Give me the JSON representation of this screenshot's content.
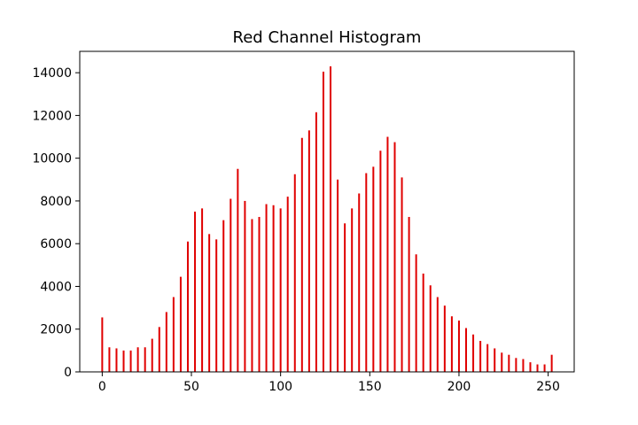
{
  "chart_data": {
    "type": "bar",
    "title": "Red Channel Histogram",
    "xlabel": "",
    "ylabel": "",
    "xlim": [
      -12.6,
      264.6
    ],
    "ylim": [
      0,
      15000
    ],
    "x_ticks": [
      0,
      50,
      100,
      150,
      200,
      250
    ],
    "y_ticks": [
      0,
      2000,
      4000,
      6000,
      8000,
      10000,
      12000,
      14000
    ],
    "grid": false,
    "legend": "none",
    "bar_color": "#e00000",
    "series": [
      {
        "x": [
          0,
          4,
          8,
          12,
          16,
          20,
          24,
          28,
          32,
          36,
          40,
          44,
          48,
          52,
          56,
          60,
          64,
          68,
          72,
          76,
          80,
          84,
          88,
          92,
          96,
          100,
          104,
          108,
          112,
          116,
          120,
          124,
          128,
          132,
          136,
          140,
          144,
          148,
          152,
          156,
          160,
          164,
          168,
          172,
          176,
          180,
          184,
          188,
          192,
          196,
          200,
          204,
          208,
          212,
          216,
          220,
          224,
          228,
          232,
          236,
          240,
          244,
          248,
          252
        ],
        "values": [
          2550,
          1150,
          1100,
          1000,
          1000,
          1150,
          1150,
          1550,
          2100,
          2800,
          3500,
          4450,
          6100,
          7500,
          7650,
          6450,
          6200,
          7100,
          8100,
          9500,
          8000,
          7150,
          7250,
          7850,
          7800,
          7650,
          8200,
          9250,
          10950,
          11300,
          12150,
          14050,
          14300,
          9000,
          6950,
          7650,
          8350,
          9300,
          9600,
          10350,
          11000,
          10750,
          9100,
          7250,
          5500,
          4600,
          4050,
          3500,
          3100,
          2600,
          2400,
          2050,
          1750,
          1450,
          1300,
          1100,
          900,
          800,
          650,
          600,
          450,
          350,
          350,
          800
        ]
      }
    ]
  }
}
